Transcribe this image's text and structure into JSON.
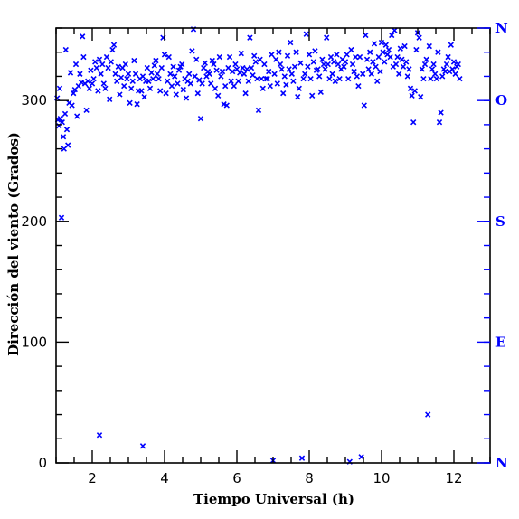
{
  "colors": {
    "axes": "#000000",
    "data": "#0000ff",
    "direction_axis": "#0000ff"
  },
  "chart_data": {
    "type": "scatter",
    "marker": "x",
    "xlabel": "Tiempo Universal (h)",
    "ylabel": "Dirección del viento (Grados)",
    "xlim": [
      1.0,
      13.0
    ],
    "ylim": [
      0,
      360
    ],
    "xticks": [
      2,
      4,
      6,
      8,
      10,
      12
    ],
    "yticks": [
      0,
      100,
      200,
      300
    ],
    "x_minor_step": 0.5,
    "y_minor_step": 20,
    "right_axis": {
      "labels": [
        {
          "value": 0,
          "label": "N"
        },
        {
          "value": 100,
          "label": "E"
        },
        {
          "value": 200,
          "label": "S"
        },
        {
          "value": 300,
          "label": "O"
        },
        {
          "value": 360,
          "label": "N"
        }
      ],
      "minor_step": 20
    },
    "series": [
      {
        "points": [
          [
            1.03,
            302
          ],
          [
            1.05,
            284
          ],
          [
            1.08,
            279
          ],
          [
            1.1,
            310
          ],
          [
            1.12,
            285
          ],
          [
            1.15,
            203
          ],
          [
            1.17,
            282
          ],
          [
            1.2,
            270
          ],
          [
            1.22,
            260
          ],
          [
            1.25,
            289
          ],
          [
            1.27,
            342
          ],
          [
            1.3,
            276
          ],
          [
            1.33,
            263
          ],
          [
            1.36,
            298
          ],
          [
            1.4,
            323
          ],
          [
            1.44,
            296
          ],
          [
            1.48,
            306
          ],
          [
            1.52,
            309
          ],
          [
            1.55,
            330
          ],
          [
            1.58,
            287
          ],
          [
            1.62,
            312
          ],
          [
            1.66,
            322
          ],
          [
            1.7,
            315
          ],
          [
            1.73,
            353
          ],
          [
            1.76,
            336
          ],
          [
            1.8,
            314
          ],
          [
            1.84,
            292
          ],
          [
            1.88,
            316
          ],
          [
            1.92,
            310
          ],
          [
            1.96,
            325
          ],
          [
            2.0,
            314
          ],
          [
            2.04,
            318
          ],
          [
            2.08,
            332
          ],
          [
            2.12,
            327
          ],
          [
            2.16,
            308
          ],
          [
            2.2,
            334
          ],
          [
            2.24,
            322
          ],
          [
            2.28,
            330
          ],
          [
            2.32,
            314
          ],
          [
            2.36,
            310
          ],
          [
            2.4,
            336
          ],
          [
            2.44,
            327
          ],
          [
            2.48,
            301
          ],
          [
            2.52,
            332
          ],
          [
            2.56,
            342
          ],
          [
            2.6,
            346
          ],
          [
            2.64,
            322
          ],
          [
            2.68,
            316
          ],
          [
            2.72,
            328
          ],
          [
            2.76,
            305
          ],
          [
            2.8,
            319
          ],
          [
            2.84,
            327
          ],
          [
            2.88,
            312
          ],
          [
            2.92,
            330
          ],
          [
            2.96,
            318
          ],
          [
            3.0,
            322
          ],
          [
            3.04,
            298
          ],
          [
            3.08,
            310
          ],
          [
            3.12,
            316
          ],
          [
            3.16,
            333
          ],
          [
            3.2,
            322
          ],
          [
            3.24,
            297
          ],
          [
            3.28,
            308
          ],
          [
            3.32,
            318
          ],
          [
            3.36,
            308
          ],
          [
            3.4,
            320
          ],
          [
            3.44,
            303
          ],
          [
            3.48,
            316
          ],
          [
            3.52,
            327
          ],
          [
            3.56,
            316
          ],
          [
            3.6,
            310
          ],
          [
            3.64,
            323
          ],
          [
            3.68,
            318
          ],
          [
            3.72,
            329
          ],
          [
            3.76,
            333
          ],
          [
            3.8,
            322
          ],
          [
            3.84,
            318
          ],
          [
            3.88,
            308
          ],
          [
            3.92,
            327
          ],
          [
            3.96,
            352
          ],
          [
            4.0,
            338
          ],
          [
            4.04,
            306
          ],
          [
            4.08,
            316
          ],
          [
            4.12,
            336
          ],
          [
            4.16,
            322
          ],
          [
            4.2,
            312
          ],
          [
            4.24,
            328
          ],
          [
            4.28,
            320
          ],
          [
            4.32,
            305
          ],
          [
            4.36,
            314
          ],
          [
            4.4,
            325
          ],
          [
            4.44,
            328
          ],
          [
            4.48,
            330
          ],
          [
            4.52,
            309
          ],
          [
            4.56,
            318
          ],
          [
            4.6,
            302
          ],
          [
            4.64,
            316
          ],
          [
            4.68,
            322
          ],
          [
            4.72,
            314
          ],
          [
            4.76,
            341
          ],
          [
            4.8,
            359
          ],
          [
            4.84,
            320
          ],
          [
            4.88,
            334
          ],
          [
            4.92,
            306
          ],
          [
            4.96,
            317
          ],
          [
            5.0,
            285
          ],
          [
            5.04,
            314
          ],
          [
            5.08,
            327
          ],
          [
            5.12,
            331
          ],
          [
            5.16,
            320
          ],
          [
            5.2,
            324
          ],
          [
            5.24,
            322
          ],
          [
            5.28,
            314
          ],
          [
            5.32,
            333
          ],
          [
            5.36,
            330
          ],
          [
            5.4,
            310
          ],
          [
            5.44,
            325
          ],
          [
            5.48,
            304
          ],
          [
            5.52,
            336
          ],
          [
            5.56,
            320
          ],
          [
            5.6,
            324
          ],
          [
            5.64,
            297
          ],
          [
            5.68,
            312
          ],
          [
            5.72,
            296
          ],
          [
            5.76,
            327
          ],
          [
            5.8,
            336
          ],
          [
            5.84,
            316
          ],
          [
            5.88,
            324
          ],
          [
            5.92,
            312
          ],
          [
            5.96,
            330
          ],
          [
            6.0,
            326
          ],
          [
            6.04,
            316
          ],
          [
            6.08,
            323
          ],
          [
            6.12,
            339
          ],
          [
            6.16,
            327
          ],
          [
            6.2,
            322
          ],
          [
            6.24,
            306
          ],
          [
            6.28,
            326
          ],
          [
            6.32,
            316
          ],
          [
            6.36,
            352
          ],
          [
            6.4,
            327
          ],
          [
            6.44,
            321
          ],
          [
            6.48,
            337
          ],
          [
            6.52,
            332
          ],
          [
            6.56,
            318
          ],
          [
            6.6,
            292
          ],
          [
            6.64,
            334
          ],
          [
            6.68,
            318
          ],
          [
            6.72,
            310
          ],
          [
            6.76,
            330
          ],
          [
            6.8,
            318
          ],
          [
            6.84,
            318
          ],
          [
            6.88,
            324
          ],
          [
            6.92,
            312
          ],
          [
            6.96,
            338
          ],
          [
            7.0,
            2
          ],
          [
            7.04,
            322
          ],
          [
            7.08,
            334
          ],
          [
            7.12,
            314
          ],
          [
            7.16,
            340
          ],
          [
            7.2,
            330
          ],
          [
            7.24,
            326
          ],
          [
            7.28,
            306
          ],
          [
            7.32,
            320
          ],
          [
            7.36,
            313
          ],
          [
            7.4,
            337
          ],
          [
            7.44,
            326
          ],
          [
            7.48,
            348
          ],
          [
            7.52,
            322
          ],
          [
            7.56,
            316
          ],
          [
            7.6,
            328
          ],
          [
            7.64,
            340
          ],
          [
            7.68,
            303
          ],
          [
            7.72,
            310
          ],
          [
            7.76,
            331
          ],
          [
            7.8,
            4
          ],
          [
            7.84,
            318
          ],
          [
            7.88,
            322
          ],
          [
            7.92,
            355
          ],
          [
            7.96,
            328
          ],
          [
            8.0,
            338
          ],
          [
            8.04,
            318
          ],
          [
            8.08,
            304
          ],
          [
            8.12,
            332
          ],
          [
            8.16,
            341
          ],
          [
            8.2,
            325
          ],
          [
            8.24,
            326
          ],
          [
            8.28,
            320
          ],
          [
            8.32,
            307
          ],
          [
            8.36,
            334
          ],
          [
            8.4,
            330
          ],
          [
            8.44,
            326
          ],
          [
            8.48,
            352
          ],
          [
            8.52,
            330
          ],
          [
            8.56,
            318
          ],
          [
            8.6,
            336
          ],
          [
            8.64,
            322
          ],
          [
            8.68,
            332
          ],
          [
            8.72,
            316
          ],
          [
            8.76,
            338
          ],
          [
            8.8,
            330
          ],
          [
            8.84,
            318
          ],
          [
            8.88,
            326
          ],
          [
            8.92,
            334
          ],
          [
            8.96,
            328
          ],
          [
            9.0,
            332
          ],
          [
            9.04,
            338
          ],
          [
            9.08,
            318
          ],
          [
            9.12,
            1
          ],
          [
            9.16,
            342
          ],
          [
            9.2,
            330
          ],
          [
            9.24,
            324
          ],
          [
            9.28,
            336
          ],
          [
            9.32,
            320
          ],
          [
            9.36,
            312
          ],
          [
            9.4,
            336
          ],
          [
            9.44,
            5
          ],
          [
            9.48,
            322
          ],
          [
            9.52,
            296
          ],
          [
            9.56,
            354
          ],
          [
            9.6,
            334
          ],
          [
            9.64,
            326
          ],
          [
            9.68,
            340
          ],
          [
            9.72,
            322
          ],
          [
            9.76,
            332
          ],
          [
            9.8,
            347
          ],
          [
            9.84,
            328
          ],
          [
            9.88,
            316
          ],
          [
            9.92,
            336
          ],
          [
            9.96,
            324
          ],
          [
            10.0,
            348
          ],
          [
            10.04,
            340
          ],
          [
            10.08,
            332
          ],
          [
            10.12,
            346
          ],
          [
            10.16,
            338
          ],
          [
            10.2,
            342
          ],
          [
            10.24,
            336
          ],
          [
            10.28,
            354
          ],
          [
            10.32,
            328
          ],
          [
            10.36,
            358
          ],
          [
            10.4,
            330
          ],
          [
            10.44,
            336
          ],
          [
            10.48,
            322
          ],
          [
            10.52,
            343
          ],
          [
            10.56,
            334
          ],
          [
            10.6,
            328
          ],
          [
            10.64,
            345
          ],
          [
            10.68,
            332
          ],
          [
            10.72,
            320
          ],
          [
            10.76,
            326
          ],
          [
            10.8,
            310
          ],
          [
            10.84,
            304
          ],
          [
            10.88,
            282
          ],
          [
            10.92,
            308
          ],
          [
            10.96,
            342
          ],
          [
            11.0,
            356
          ],
          [
            11.04,
            352
          ],
          [
            11.08,
            303
          ],
          [
            11.12,
            326
          ],
          [
            11.16,
            318
          ],
          [
            11.2,
            330
          ],
          [
            11.24,
            334
          ],
          [
            11.28,
            40
          ],
          [
            11.32,
            345
          ],
          [
            11.36,
            318
          ],
          [
            11.4,
            326
          ],
          [
            11.44,
            330
          ],
          [
            11.48,
            322
          ],
          [
            11.52,
            318
          ],
          [
            11.56,
            340
          ],
          [
            11.6,
            282
          ],
          [
            11.64,
            290
          ],
          [
            11.68,
            320
          ],
          [
            11.72,
            326
          ],
          [
            11.76,
            324
          ],
          [
            11.8,
            330
          ],
          [
            11.84,
            336
          ],
          [
            11.88,
            324
          ],
          [
            11.92,
            346
          ],
          [
            11.96,
            326
          ],
          [
            12.0,
            332
          ],
          [
            12.04,
            322
          ],
          [
            12.08,
            328
          ],
          [
            12.12,
            330
          ],
          [
            12.16,
            318
          ],
          [
            2.2,
            23
          ],
          [
            3.4,
            14
          ]
        ]
      }
    ]
  }
}
